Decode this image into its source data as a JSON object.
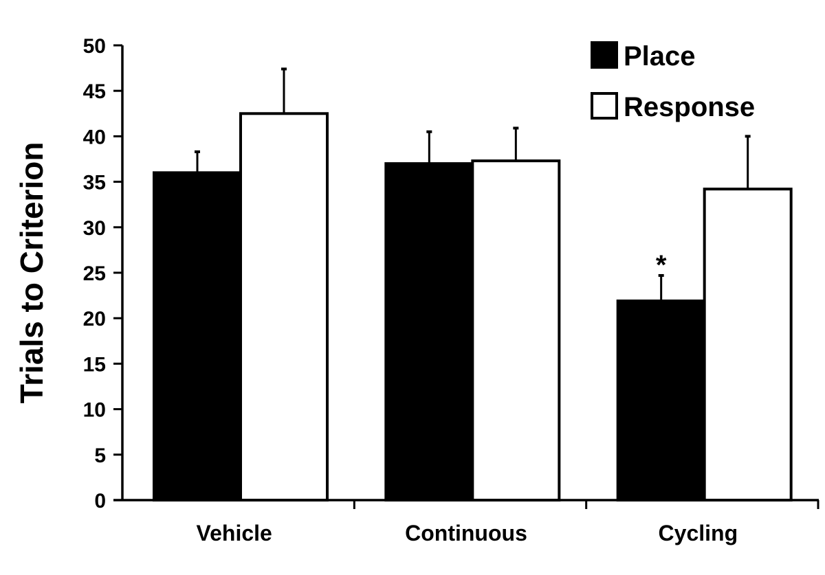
{
  "chart_data": {
    "type": "bar",
    "ylabel": "Trials to Criterion",
    "xlabel": "",
    "ylim": [
      0,
      50
    ],
    "yticks": [
      0,
      5,
      10,
      15,
      20,
      25,
      30,
      35,
      40,
      45,
      50
    ],
    "grid": false,
    "legend_position": "top-right",
    "categories": [
      "Vehicle",
      "Continuous",
      "Cycling"
    ],
    "series": [
      {
        "name": "Place",
        "color": "#000000",
        "values": [
          36.0,
          37.0,
          21.9
        ],
        "errors": [
          2.3,
          3.5,
          2.8
        ]
      },
      {
        "name": "Response",
        "color": "#ffffff",
        "values": [
          42.5,
          37.3,
          34.2
        ],
        "errors": [
          4.9,
          3.6,
          5.8
        ]
      }
    ],
    "annotations": [
      {
        "text": "*",
        "category": "Cycling",
        "series": "Place"
      }
    ]
  }
}
